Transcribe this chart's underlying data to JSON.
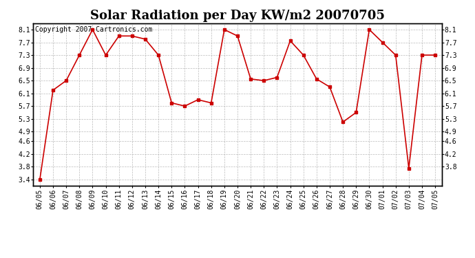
{
  "title": "Solar Radiation per Day KW/m2 20070705",
  "copyright_text": "Copyright 2007 Cartronics.com",
  "labels": [
    "06/05",
    "06/06",
    "06/07",
    "06/08",
    "06/09",
    "06/10",
    "06/11",
    "06/12",
    "06/13",
    "06/14",
    "06/15",
    "06/16",
    "06/17",
    "06/18",
    "06/19",
    "06/20",
    "06/21",
    "06/22",
    "06/23",
    "06/24",
    "06/25",
    "06/26",
    "06/27",
    "06/28",
    "06/29",
    "06/30",
    "07/01",
    "07/02",
    "07/03",
    "07/04",
    "07/05"
  ],
  "values": [
    3.4,
    6.2,
    6.5,
    7.3,
    8.1,
    7.3,
    7.9,
    7.9,
    7.8,
    7.3,
    5.8,
    5.7,
    5.9,
    5.8,
    8.1,
    7.9,
    6.55,
    6.5,
    6.6,
    7.75,
    7.3,
    6.55,
    6.3,
    5.2,
    5.5,
    8.1,
    7.7,
    7.3,
    3.75,
    7.3,
    7.3
  ],
  "line_color": "#cc0000",
  "marker": "s",
  "markersize": 3,
  "bg_color": "#ffffff",
  "plot_bg_color": "#ffffff",
  "grid_color": "#aaaaaa",
  "ylim_min": 3.2,
  "ylim_max": 8.3,
  "yticks_left": [
    3.4,
    3.8,
    4.2,
    4.6,
    4.9,
    5.3,
    5.7,
    6.1,
    6.5,
    6.9,
    7.3,
    7.7,
    8.1
  ],
  "yticks_right": [
    3.8,
    4.2,
    4.6,
    4.9,
    5.3,
    5.7,
    6.1,
    6.5,
    6.9,
    7.3,
    7.7,
    8.1
  ],
  "title_fontsize": 13,
  "copyright_fontsize": 7,
  "tick_labelsize": 7
}
